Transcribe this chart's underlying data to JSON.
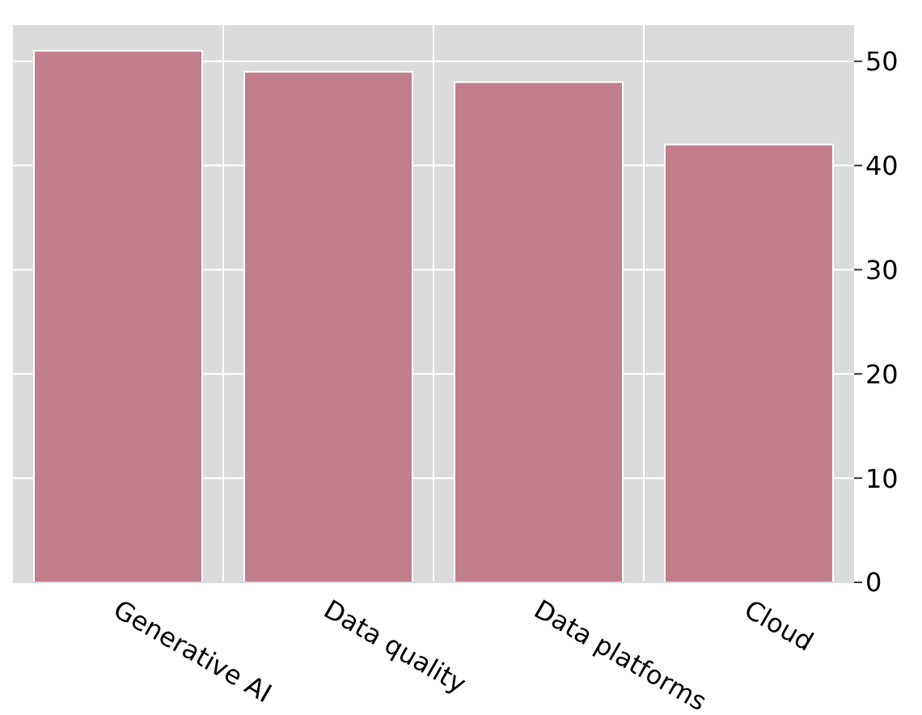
{
  "chart_data": {
    "type": "bar",
    "categories": [
      "Generative AI",
      "Data quality",
      "Data platforms",
      "Cloud"
    ],
    "values": [
      51,
      49,
      48,
      42
    ],
    "color": "#c17f8d",
    "ylim": [
      0,
      53.55
    ],
    "yticks": [
      0,
      10,
      20,
      30,
      40,
      50
    ],
    "grid": true
  }
}
